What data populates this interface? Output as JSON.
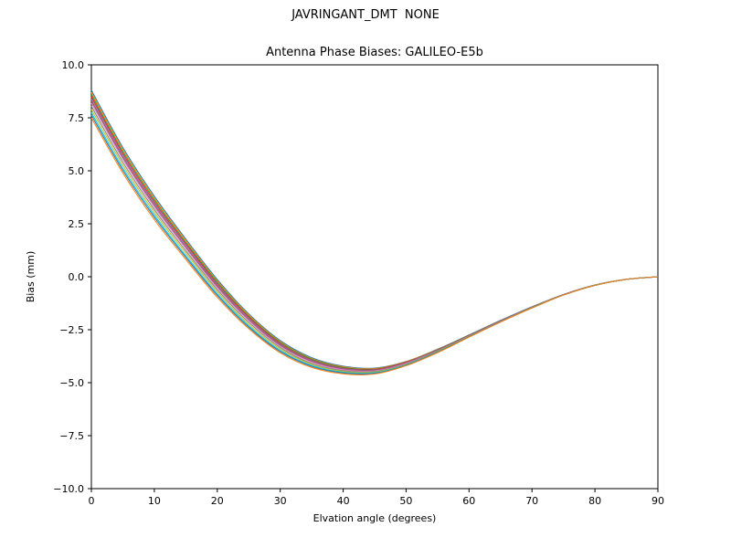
{
  "suptitle": "JAVRINGANT_DMT  NONE",
  "chart_data": {
    "type": "line",
    "title": "Antenna Phase Biases: GALILEO-E5b",
    "xlabel": "Elvation angle (degrees)",
    "ylabel": "Bias (mm)",
    "xlim": [
      0,
      90
    ],
    "ylim": [
      -10,
      10
    ],
    "grid": false,
    "legend": "none",
    "xticks": [
      0,
      10,
      20,
      30,
      40,
      50,
      60,
      70,
      80,
      90
    ],
    "xtick_labels": [
      "0",
      "10",
      "20",
      "30",
      "40",
      "50",
      "60",
      "70",
      "80",
      "90"
    ],
    "yticks": [
      -10.0,
      -7.5,
      -5.0,
      -2.5,
      0.0,
      2.5,
      5.0,
      7.5,
      10.0
    ],
    "ytick_labels": [
      "−10.0",
      "−7.5",
      "−5.0",
      "−2.5",
      "0.0",
      "2.5",
      "5.0",
      "7.5",
      "10.0"
    ],
    "x": [
      0,
      5,
      10,
      15,
      20,
      25,
      30,
      35,
      40,
      45,
      50,
      55,
      60,
      65,
      70,
      75,
      80,
      85,
      90
    ],
    "series": [
      {
        "name": "line-01",
        "color": "#1f77b4",
        "values": [
          8.8,
          6.1,
          3.8,
          1.78,
          -0.13,
          -1.75,
          -3.01,
          -3.82,
          -4.22,
          -4.31,
          -4.0,
          -3.42,
          -2.75,
          -2.06,
          -1.42,
          -0.84,
          -0.39,
          -0.12,
          0.0
        ]
      },
      {
        "name": "line-02",
        "color": "#ff7f0e",
        "values": [
          8.7,
          6.01,
          3.71,
          1.71,
          -0.2,
          -1.8,
          -3.06,
          -3.86,
          -4.25,
          -4.33,
          -4.01,
          -3.43,
          -2.76,
          -2.07,
          -1.43,
          -0.84,
          -0.39,
          -0.12,
          0.0
        ]
      },
      {
        "name": "line-03",
        "color": "#2ca02c",
        "values": [
          8.6,
          5.91,
          3.63,
          1.63,
          -0.26,
          -1.86,
          -3.1,
          -3.89,
          -4.28,
          -4.36,
          -4.03,
          -3.45,
          -2.76,
          -2.07,
          -1.43,
          -0.84,
          -0.4,
          -0.12,
          0.0
        ]
      },
      {
        "name": "line-04",
        "color": "#d62728",
        "values": [
          8.5,
          5.82,
          3.54,
          1.56,
          -0.33,
          -1.91,
          -3.15,
          -3.93,
          -4.31,
          -4.38,
          -4.04,
          -3.46,
          -2.77,
          -2.08,
          -1.44,
          -0.84,
          -0.4,
          -0.12,
          0.0
        ]
      },
      {
        "name": "line-05",
        "color": "#9467bd",
        "values": [
          8.4,
          5.73,
          3.46,
          1.49,
          -0.39,
          -1.96,
          -3.19,
          -3.96,
          -4.33,
          -4.4,
          -4.06,
          -3.47,
          -2.78,
          -2.08,
          -1.44,
          -0.84,
          -0.4,
          -0.12,
          0.0
        ]
      },
      {
        "name": "line-06",
        "color": "#8c564b",
        "values": [
          8.3,
          5.64,
          3.38,
          1.41,
          -0.45,
          -2.02,
          -3.23,
          -4.0,
          -4.36,
          -4.42,
          -4.08,
          -3.48,
          -2.79,
          -2.09,
          -1.44,
          -0.85,
          -0.4,
          -0.12,
          0.0
        ]
      },
      {
        "name": "line-07",
        "color": "#e377c2",
        "values": [
          8.2,
          5.55,
          3.29,
          1.34,
          -0.52,
          -2.07,
          -3.28,
          -4.03,
          -4.39,
          -4.44,
          -4.09,
          -3.49,
          -2.8,
          -2.1,
          -1.45,
          -0.85,
          -0.4,
          -0.12,
          0.0
        ]
      },
      {
        "name": "line-08",
        "color": "#7f7f7f",
        "values": [
          8.05,
          5.41,
          3.17,
          1.23,
          -0.61,
          -2.15,
          -3.34,
          -4.09,
          -4.43,
          -4.47,
          -4.12,
          -3.51,
          -2.81,
          -2.11,
          -1.45,
          -0.85,
          -0.4,
          -0.12,
          0.0
        ]
      },
      {
        "name": "line-09",
        "color": "#bcbd22",
        "values": [
          7.9,
          5.27,
          3.04,
          1.12,
          -0.71,
          -2.24,
          -3.41,
          -4.14,
          -4.47,
          -4.5,
          -4.14,
          -3.53,
          -2.82,
          -2.12,
          -1.46,
          -0.86,
          -0.4,
          -0.12,
          0.0
        ]
      },
      {
        "name": "line-10",
        "color": "#17becf",
        "values": [
          7.75,
          5.13,
          2.91,
          1.0,
          -0.81,
          -2.32,
          -3.48,
          -4.19,
          -4.51,
          -4.53,
          -4.16,
          -3.55,
          -2.83,
          -2.12,
          -1.47,
          -0.86,
          -0.4,
          -0.12,
          0.0
        ]
      },
      {
        "name": "line-11",
        "color": "#1f77b4",
        "values": [
          7.63,
          5.02,
          2.81,
          0.92,
          -0.88,
          -2.38,
          -3.53,
          -4.23,
          -4.54,
          -4.56,
          -4.18,
          -3.56,
          -2.84,
          -2.13,
          -1.47,
          -0.86,
          -0.41,
          -0.12,
          0.0
        ]
      },
      {
        "name": "line-12",
        "color": "#ff7f0e",
        "values": [
          7.5,
          4.9,
          2.7,
          0.82,
          -0.97,
          -2.45,
          -3.59,
          -4.28,
          -4.58,
          -4.59,
          -4.2,
          -3.58,
          -2.85,
          -2.14,
          -1.48,
          -0.86,
          -0.41,
          -0.12,
          0.0
        ]
      }
    ]
  }
}
